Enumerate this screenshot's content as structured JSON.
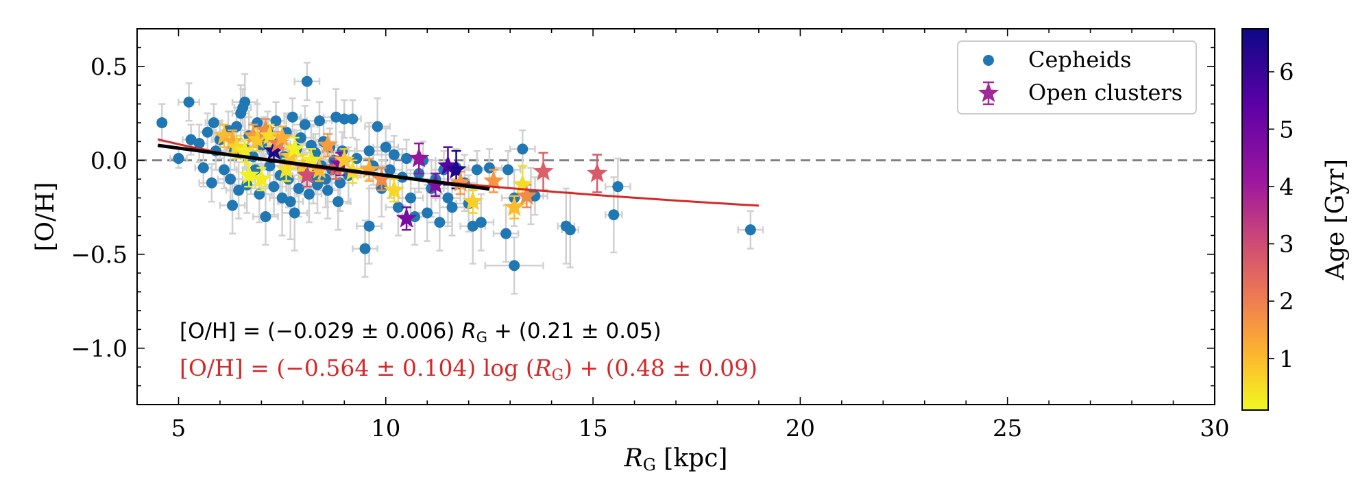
{
  "chart_data": {
    "type": "scatter",
    "xlabel_var": "R",
    "xlabel_sub": "G",
    "xlabel_unit": " [kpc]",
    "ylabel": "[O/H]",
    "xlim": [
      4,
      30
    ],
    "ylim": [
      -1.3,
      0.7
    ],
    "xticks": [
      5,
      10,
      15,
      20,
      25,
      30
    ],
    "xtick_labels": [
      "5",
      "10",
      "15",
      "20",
      "25",
      "30"
    ],
    "yticks": [
      0.5,
      0.0,
      -0.5,
      -1.0
    ],
    "ytick_labels": [
      "0.5",
      "0.0",
      "−0.5",
      "−1.0"
    ],
    "zero_line_y": 0.0,
    "legend": {
      "placement": "top-right",
      "entries": [
        {
          "label": "Cepheids",
          "marker": "circle",
          "color": "#1f77b4"
        },
        {
          "label": "Open clusters",
          "marker": "star-errorbar",
          "color": "#a02898"
        }
      ]
    },
    "colorbar": {
      "label": "Age [Gyr]",
      "range": [
        0.1,
        6.75
      ],
      "ticks": [
        1,
        2,
        3,
        4,
        5,
        6
      ],
      "tick_labels": [
        "1",
        "2",
        "3",
        "4",
        "5",
        "6"
      ],
      "colormap": "plasma_r"
    },
    "fits": [
      {
        "name": "linear",
        "color": "#000000",
        "x_range": [
          4.5,
          12.5
        ],
        "slope": -0.029,
        "intercept": 0.21
      },
      {
        "name": "log",
        "color": "#d62728",
        "x_range": [
          4.5,
          19.0
        ],
        "slope_log": -0.564,
        "intercept": 0.48
      }
    ],
    "annotations": {
      "linear_pre": "[O/H] = (−0.029 ± 0.006) ",
      "linear_var": "R",
      "linear_sub": "G",
      "linear_post": " + (0.21 ± 0.05)",
      "log_pre": "[O/H] = (−0.564 ± 0.104) log (",
      "log_var": "R",
      "log_sub": "G",
      "log_post": ") + (0.48 ± 0.09)"
    },
    "cepheids": [
      [
        4.6,
        0.2,
        0.1,
        0.1
      ],
      [
        5.0,
        0.01,
        0.2,
        0.05
      ],
      [
        5.25,
        0.31,
        0.25,
        0.1
      ],
      [
        5.3,
        0.11,
        0.2,
        0.08
      ],
      [
        5.5,
        0.09,
        0.2,
        0.1
      ],
      [
        5.6,
        -0.04,
        0.2,
        0.1
      ],
      [
        5.7,
        0.15,
        0.2,
        0.1
      ],
      [
        5.8,
        -0.12,
        0.3,
        0.1
      ],
      [
        5.85,
        0.2,
        0.2,
        0.1
      ],
      [
        5.9,
        0.05,
        0.2,
        0.1
      ],
      [
        6.0,
        0.11,
        0.2,
        0.1
      ],
      [
        6.1,
        -0.05,
        0.3,
        0.1
      ],
      [
        6.2,
        0.16,
        0.2,
        0.1
      ],
      [
        6.25,
        -0.1,
        0.3,
        0.15
      ],
      [
        6.3,
        -0.24,
        0.3,
        0.15
      ],
      [
        6.35,
        0.05,
        0.2,
        0.1
      ],
      [
        6.4,
        0.18,
        0.2,
        0.1
      ],
      [
        6.45,
        -0.16,
        0.3,
        0.15
      ],
      [
        6.5,
        0.25,
        0.2,
        0.15
      ],
      [
        6.55,
        0.28,
        0.2,
        0.1
      ],
      [
        6.6,
        0.31,
        0.3,
        0.15
      ],
      [
        6.6,
        0.06,
        0.2,
        0.1
      ],
      [
        6.65,
        -0.13,
        0.3,
        0.15
      ],
      [
        6.7,
        0.13,
        0.2,
        0.1
      ],
      [
        6.8,
        0.02,
        0.3,
        0.1
      ],
      [
        6.85,
        -0.05,
        0.3,
        0.1
      ],
      [
        6.9,
        0.2,
        0.2,
        0.1
      ],
      [
        6.95,
        -0.18,
        0.3,
        0.15
      ],
      [
        7.0,
        0.08,
        0.3,
        0.1
      ],
      [
        7.05,
        0.13,
        0.2,
        0.1
      ],
      [
        7.1,
        -0.3,
        0.3,
        0.15
      ],
      [
        7.15,
        0.16,
        0.2,
        0.1
      ],
      [
        7.2,
        -0.03,
        0.3,
        0.1
      ],
      [
        7.25,
        0.05,
        0.3,
        0.1
      ],
      [
        7.3,
        -0.14,
        0.3,
        0.15
      ],
      [
        7.35,
        0.21,
        0.2,
        0.1
      ],
      [
        7.4,
        0.09,
        0.3,
        0.1
      ],
      [
        7.45,
        -0.08,
        0.3,
        0.15
      ],
      [
        7.5,
        -0.2,
        0.3,
        0.2
      ],
      [
        7.55,
        0.02,
        0.3,
        0.1
      ],
      [
        7.6,
        0.15,
        0.2,
        0.1
      ],
      [
        7.65,
        -0.1,
        0.3,
        0.15
      ],
      [
        7.7,
        -0.22,
        0.3,
        0.2
      ],
      [
        7.75,
        0.23,
        0.2,
        0.1
      ],
      [
        7.8,
        -0.28,
        0.3,
        0.2
      ],
      [
        7.85,
        0.06,
        0.3,
        0.1
      ],
      [
        7.9,
        -0.15,
        0.3,
        0.15
      ],
      [
        7.95,
        0.12,
        0.3,
        0.1
      ],
      [
        8.0,
        -0.05,
        0.3,
        0.1
      ],
      [
        8.05,
        0.19,
        0.3,
        0.1
      ],
      [
        8.1,
        0.42,
        0.3,
        0.1
      ],
      [
        8.15,
        -0.18,
        0.3,
        0.15
      ],
      [
        8.2,
        0.08,
        0.3,
        0.1
      ],
      [
        8.25,
        -0.08,
        0.3,
        0.15
      ],
      [
        8.3,
        0.04,
        0.3,
        0.1
      ],
      [
        8.35,
        -0.13,
        0.3,
        0.15
      ],
      [
        8.4,
        0.21,
        0.3,
        0.1
      ],
      [
        8.45,
        -0.03,
        0.3,
        0.1
      ],
      [
        8.5,
        0.1,
        0.3,
        0.1
      ],
      [
        8.55,
        -0.1,
        0.3,
        0.15
      ],
      [
        8.6,
        -0.16,
        0.3,
        0.15
      ],
      [
        8.65,
        0.07,
        0.3,
        0.1
      ],
      [
        8.7,
        -0.05,
        0.3,
        0.1
      ],
      [
        8.75,
        0.0,
        0.3,
        0.1
      ],
      [
        8.8,
        0.23,
        0.3,
        0.15
      ],
      [
        8.85,
        -0.22,
        0.3,
        0.15
      ],
      [
        8.9,
        -0.12,
        0.3,
        0.15
      ],
      [
        8.95,
        0.05,
        0.3,
        0.1
      ],
      [
        9.0,
        0.22,
        0.2,
        0.1
      ],
      [
        9.1,
        -0.08,
        0.3,
        0.15
      ],
      [
        9.2,
        0.22,
        0.2,
        0.1
      ],
      [
        9.3,
        0.01,
        0.3,
        0.1
      ],
      [
        9.5,
        -0.47,
        0.3,
        0.15
      ],
      [
        9.6,
        0.05,
        0.3,
        0.15
      ],
      [
        9.6,
        -0.35,
        0.3,
        0.2
      ],
      [
        9.7,
        -0.03,
        0.3,
        0.1
      ],
      [
        9.8,
        0.18,
        0.3,
        0.15
      ],
      [
        9.9,
        -0.15,
        0.3,
        0.15
      ],
      [
        10.0,
        0.07,
        0.3,
        0.1
      ],
      [
        10.1,
        -0.05,
        0.3,
        0.15
      ],
      [
        10.2,
        0.03,
        0.3,
        0.1
      ],
      [
        10.3,
        -0.25,
        0.3,
        0.15
      ],
      [
        10.4,
        -0.09,
        0.3,
        0.15
      ],
      [
        10.5,
        0.01,
        0.3,
        0.1
      ],
      [
        10.6,
        -0.2,
        0.3,
        0.15
      ],
      [
        10.7,
        -0.3,
        0.3,
        0.15
      ],
      [
        10.8,
        -0.07,
        0.3,
        0.1
      ],
      [
        10.9,
        0.0,
        0.3,
        0.1
      ],
      [
        11.0,
        -0.28,
        0.3,
        0.15
      ],
      [
        11.1,
        -0.15,
        0.3,
        0.15
      ],
      [
        11.2,
        -0.1,
        0.3,
        0.1
      ],
      [
        11.3,
        -0.33,
        0.3,
        0.15
      ],
      [
        11.4,
        -0.05,
        0.3,
        0.1
      ],
      [
        11.5,
        -0.2,
        0.3,
        0.15
      ],
      [
        11.6,
        -0.25,
        0.3,
        0.15
      ],
      [
        11.7,
        -0.04,
        0.3,
        0.1
      ],
      [
        11.9,
        -0.12,
        0.3,
        0.15
      ],
      [
        12.0,
        -0.23,
        0.3,
        0.15
      ],
      [
        12.1,
        -0.35,
        0.3,
        0.2
      ],
      [
        12.2,
        -0.05,
        0.3,
        0.1
      ],
      [
        12.3,
        -0.33,
        0.3,
        0.15
      ],
      [
        12.5,
        -0.04,
        0.3,
        0.1
      ],
      [
        12.9,
        -0.39,
        0.3,
        0.15
      ],
      [
        12.95,
        -0.05,
        0.3,
        0.1
      ],
      [
        13.1,
        -0.56,
        0.7,
        0.15
      ],
      [
        13.1,
        -0.2,
        0.3,
        0.15
      ],
      [
        13.3,
        0.06,
        0.3,
        0.1
      ],
      [
        13.5,
        -0.19,
        0.3,
        0.15
      ],
      [
        13.6,
        -0.19,
        0.3,
        0.1
      ],
      [
        14.35,
        -0.35,
        0.2,
        0.2
      ],
      [
        14.45,
        -0.37,
        0.2,
        0.2
      ],
      [
        15.5,
        -0.29,
        0.2,
        0.2
      ],
      [
        15.6,
        -0.14,
        0.3,
        0.15
      ],
      [
        18.8,
        -0.37,
        0.3,
        0.1
      ]
    ],
    "open_clusters": [
      [
        6.1,
        0.13,
        0.5,
        0.06,
        1.0
      ],
      [
        6.3,
        0.1,
        0.5,
        0.06,
        1.3
      ],
      [
        6.4,
        0.07,
        0.5,
        0.06,
        0.6
      ],
      [
        6.6,
        0.05,
        0.5,
        0.06,
        0.3
      ],
      [
        6.7,
        -0.08,
        0.5,
        0.06,
        0.2
      ],
      [
        6.8,
        0.13,
        0.5,
        0.06,
        1.5
      ],
      [
        6.9,
        0.11,
        0.5,
        0.06,
        0.8
      ],
      [
        7.0,
        -0.1,
        0.5,
        0.06,
        0.3
      ],
      [
        7.1,
        0.16,
        0.5,
        0.06,
        1.8
      ],
      [
        7.2,
        0.13,
        0.5,
        0.06,
        0.5
      ],
      [
        7.3,
        0.05,
        0.5,
        0.06,
        6.5
      ],
      [
        7.4,
        0.09,
        0.5,
        0.06,
        2.0
      ],
      [
        7.5,
        0.12,
        0.5,
        0.06,
        1.2
      ],
      [
        7.6,
        -0.05,
        0.5,
        0.06,
        0.4
      ],
      [
        7.7,
        0.02,
        0.5,
        0.06,
        0.9
      ],
      [
        7.8,
        0.06,
        0.5,
        0.06,
        0.2
      ],
      [
        8.0,
        -0.03,
        0.5,
        0.06,
        0.7
      ],
      [
        8.1,
        -0.08,
        0.5,
        0.06,
        3.0
      ],
      [
        8.2,
        0.0,
        0.5,
        0.06,
        0.3
      ],
      [
        8.4,
        -0.05,
        0.5,
        0.06,
        1.0
      ],
      [
        8.6,
        0.08,
        0.5,
        0.06,
        1.5
      ],
      [
        8.8,
        -0.04,
        0.5,
        0.06,
        2.5
      ],
      [
        8.9,
        -0.02,
        0.5,
        0.06,
        4.5
      ],
      [
        9.0,
        0.0,
        0.5,
        0.06,
        0.8
      ],
      [
        9.2,
        -0.06,
        0.5,
        0.06,
        0.5
      ],
      [
        9.6,
        -0.05,
        0.5,
        0.06,
        1.3
      ],
      [
        9.9,
        -0.1,
        0.5,
        0.06,
        1.8
      ],
      [
        10.2,
        -0.16,
        0.5,
        0.06,
        0.6
      ],
      [
        10.5,
        -0.31,
        0.5,
        0.06,
        4.8
      ],
      [
        10.8,
        0.01,
        0.5,
        0.08,
        4.2
      ],
      [
        11.2,
        -0.13,
        0.5,
        0.06,
        4.6
      ],
      [
        11.5,
        -0.03,
        0.5,
        0.1,
        5.5
      ],
      [
        11.7,
        -0.05,
        0.5,
        0.1,
        6.5
      ],
      [
        11.8,
        -0.12,
        0.5,
        0.06,
        1.5
      ],
      [
        12.1,
        -0.22,
        0.5,
        0.06,
        0.7
      ],
      [
        12.6,
        -0.11,
        0.5,
        0.06,
        1.6
      ],
      [
        13.1,
        -0.25,
        0.5,
        0.06,
        1.0
      ],
      [
        13.3,
        -0.13,
        0.5,
        0.1,
        0.5
      ],
      [
        13.4,
        -0.19,
        0.5,
        0.06,
        1.8
      ],
      [
        13.8,
        -0.06,
        0.5,
        0.1,
        2.6
      ],
      [
        15.1,
        -0.07,
        0.5,
        0.1,
        2.7
      ]
    ]
  }
}
